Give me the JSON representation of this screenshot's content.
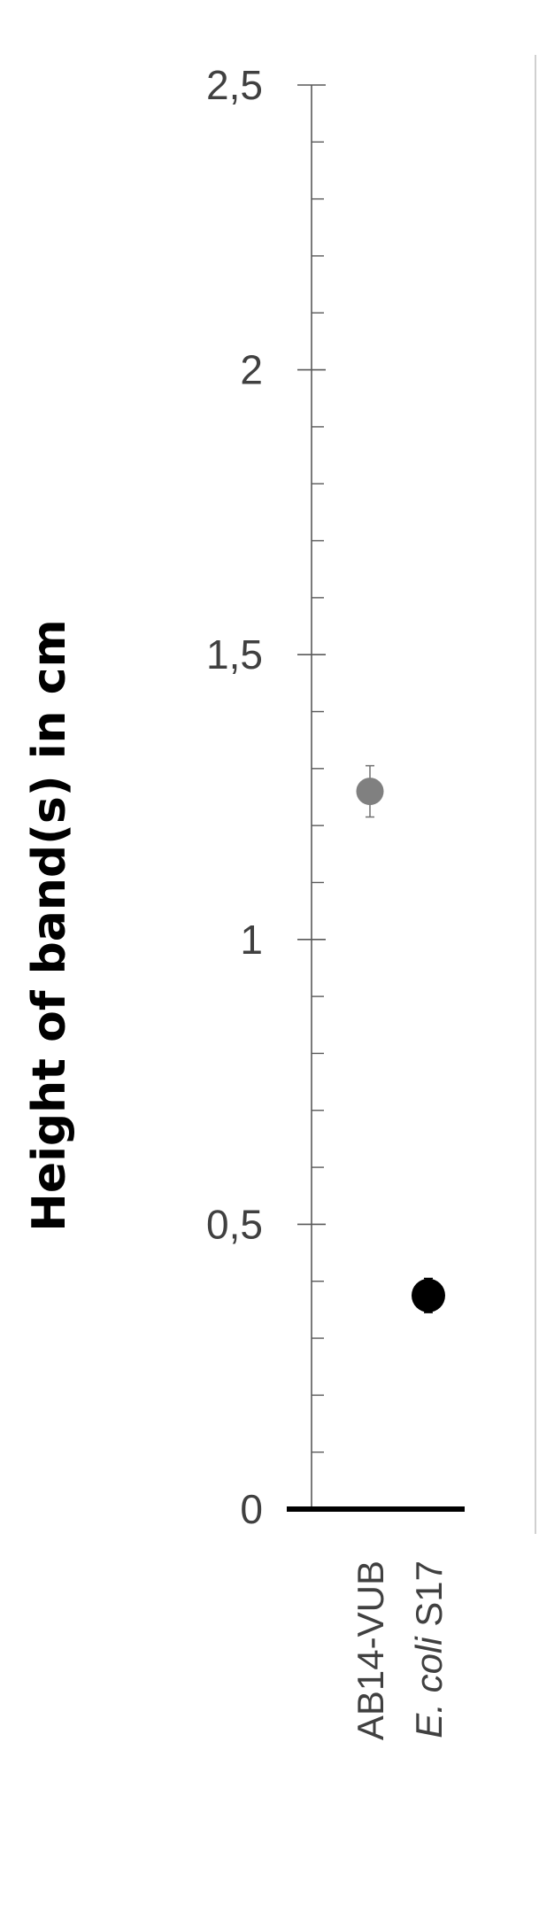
{
  "chart_data": {
    "type": "scatter",
    "ylabel": "Height of band(s) in cm",
    "xlabel": "",
    "ylim": [
      0,
      2.5
    ],
    "y_major_ticks": [
      0,
      0.5,
      1,
      1.5,
      2,
      2.5
    ],
    "y_tick_labels": [
      "0",
      "0,5",
      "1",
      "1,5",
      "2",
      "2,5"
    ],
    "y_minor_step": 0.1,
    "grid": false,
    "categories": [
      {
        "id": "ab14",
        "parts": [
          {
            "text": "AB14-VUB",
            "italic": false
          }
        ]
      },
      {
        "id": "ecoli",
        "parts": [
          {
            "text": "E. coli",
            "italic": true
          },
          {
            "text": " S17",
            "italic": false
          }
        ]
      }
    ],
    "points": [
      {
        "category": "ab14",
        "value": 1.26,
        "error": 0.045,
        "color": "#808080"
      },
      {
        "category": "ecoli",
        "value": 0.375,
        "error": 0.03,
        "color": "#000000"
      }
    ]
  }
}
